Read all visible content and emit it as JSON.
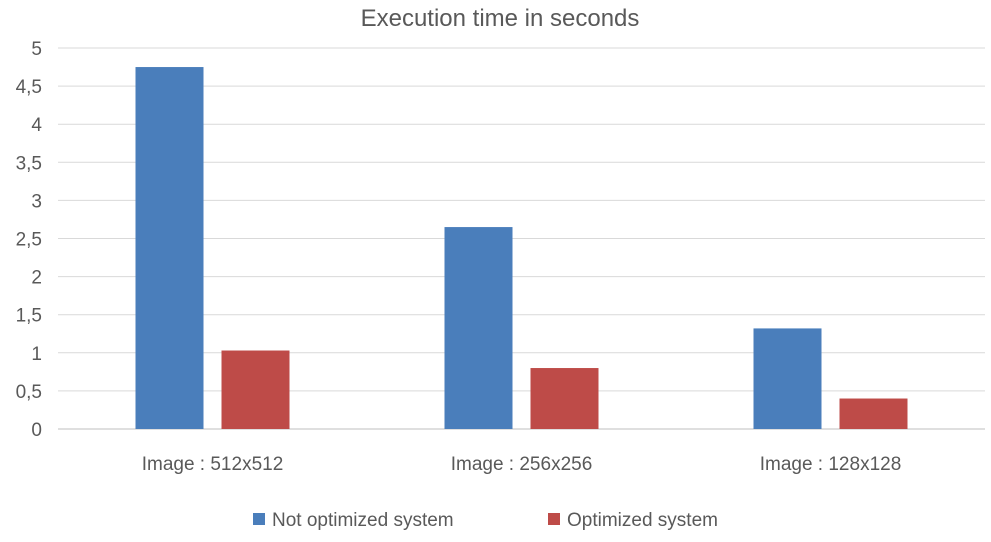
{
  "chart_data": {
    "type": "bar",
    "title": "Execution time in seconds",
    "categories": [
      "Image : 512x512",
      "Image : 256x256",
      "Image : 128x128"
    ],
    "series": [
      {
        "name": "Not optimized system",
        "color": "#4a7ebb",
        "values": [
          4.75,
          2.65,
          1.32
        ]
      },
      {
        "name": "Optimized system",
        "color": "#be4b48",
        "values": [
          1.03,
          0.8,
          0.4
        ]
      }
    ],
    "ylim": [
      0,
      5
    ],
    "yticks": [
      "0",
      "0,5",
      "1",
      "1,5",
      "2",
      "2,5",
      "3",
      "3,5",
      "4",
      "4,5",
      "5"
    ],
    "grid": true,
    "legend_position": "bottom"
  }
}
